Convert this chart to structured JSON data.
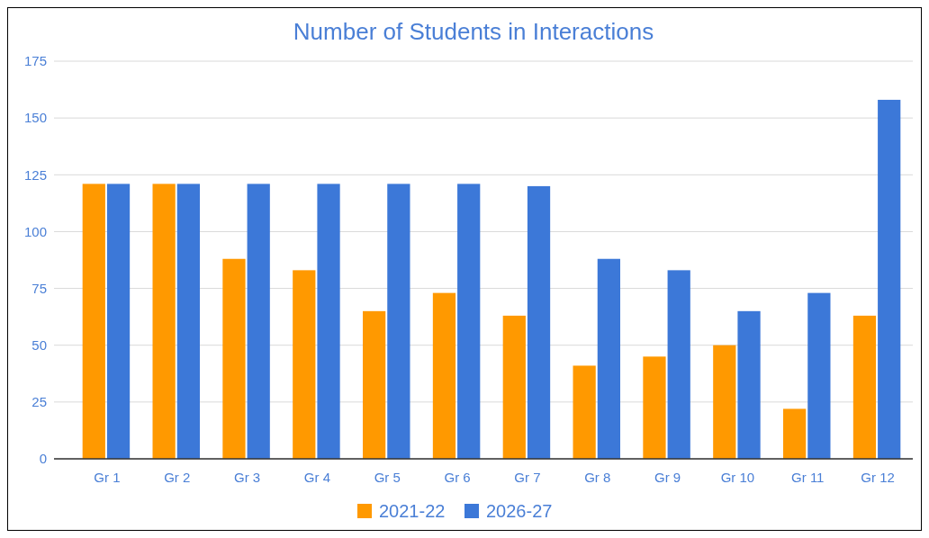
{
  "chart_data": {
    "type": "bar",
    "title": "Number of Students in Interactions",
    "categories": [
      "Gr 1",
      "Gr 2",
      "Gr 3",
      "Gr 4",
      "Gr 5",
      "Gr 6",
      "Gr 7",
      "Gr 8",
      "Gr 9",
      "Gr 10",
      "Gr 11",
      "Gr 12"
    ],
    "series": [
      {
        "name": "2021-22",
        "color": "#ff9900",
        "values": [
          121,
          121,
          88,
          83,
          65,
          73,
          63,
          41,
          45,
          50,
          22,
          63
        ]
      },
      {
        "name": "2026-27",
        "color": "#3c78d8",
        "values": [
          121,
          121,
          121,
          121,
          121,
          121,
          120,
          88,
          83,
          65,
          73,
          158
        ]
      }
    ],
    "ylim": [
      0,
      175
    ],
    "yticks": [
      0,
      25,
      50,
      75,
      100,
      125,
      150,
      175
    ],
    "grid": "y",
    "legend": "bottom"
  }
}
